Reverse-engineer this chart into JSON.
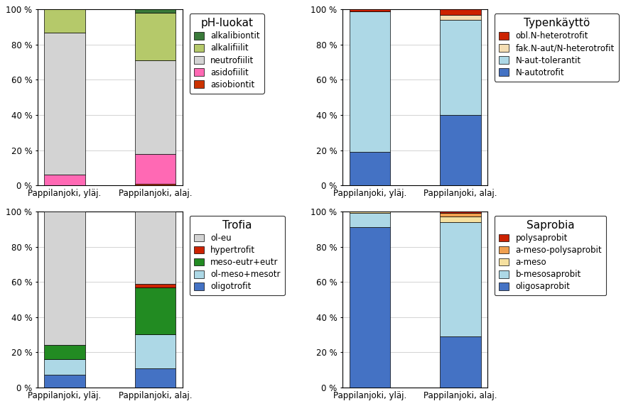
{
  "ph_luokat": {
    "title": "pH-luokat",
    "categories": [
      "Pappilanjoki, yläj.",
      "Pappilanjoki, alaj."
    ],
    "series_bottom_to_top": [
      {
        "label": "asiobiontit",
        "color": "#cc3300",
        "values": [
          0,
          1
        ]
      },
      {
        "label": "asidofiilit",
        "color": "#ff69b4",
        "values": [
          6,
          17
        ]
      },
      {
        "label": "neutrofiilit",
        "color": "#d3d3d3",
        "values": [
          81,
          53
        ]
      },
      {
        "label": "alkalifiilit",
        "color": "#b5c96a",
        "values": [
          13,
          27
        ]
      },
      {
        "label": "alkalibiontit",
        "color": "#3a7a3a",
        "values": [
          0,
          2
        ]
      }
    ],
    "legend_order": [
      "alkalibiontit",
      "alkalifiilit",
      "neutrofiilit",
      "asidofiilit",
      "asiobiontit"
    ]
  },
  "typenkaytto": {
    "title": "Typenkäyttö",
    "categories": [
      "Pappilanjoki, yläj.",
      "Pappilanjoki, alaj."
    ],
    "series_bottom_to_top": [
      {
        "label": "N-autotrofit",
        "color": "#4472c4",
        "values": [
          19,
          40
        ]
      },
      {
        "label": "N-aut-tolerantit",
        "color": "#add8e6",
        "values": [
          80,
          54
        ]
      },
      {
        "label": "fak.N-aut/N-heterotrofit",
        "color": "#f5deb3",
        "values": [
          0,
          3
        ]
      },
      {
        "label": "obl.N-heterotrofit",
        "color": "#cc2200",
        "values": [
          1,
          3
        ]
      }
    ],
    "legend_order": [
      "obl.N-heterotrofit",
      "fak.N-aut/N-heterotrofit",
      "N-aut-tolerantit",
      "N-autotrofit"
    ]
  },
  "trofia": {
    "title": "Trofia",
    "categories": [
      "Pappilanjoki, yläj.",
      "Pappilanjoki, alaj."
    ],
    "series_bottom_to_top": [
      {
        "label": "oligotrofit",
        "color": "#4472c4",
        "values": [
          7,
          11
        ]
      },
      {
        "label": "ol-meso+mesotr",
        "color": "#add8e6",
        "values": [
          9,
          19
        ]
      },
      {
        "label": "meso-eutr+eutr",
        "color": "#228b22",
        "values": [
          8,
          27
        ]
      },
      {
        "label": "hypertrofit",
        "color": "#cc2200",
        "values": [
          0,
          2
        ]
      },
      {
        "label": "ol-eu",
        "color": "#d3d3d3",
        "values": [
          76,
          41
        ]
      }
    ],
    "legend_order": [
      "ol-eu",
      "hypertrofit",
      "meso-eutr+eutr",
      "ol-meso+mesotr",
      "oligotrofit"
    ]
  },
  "saprobia": {
    "title": "Saprobia",
    "categories": [
      "Pappilanjoki, yläj.",
      "Pappilanjoki, alaj."
    ],
    "series_bottom_to_top": [
      {
        "label": "oligosaprobit",
        "color": "#4472c4",
        "values": [
          91,
          29
        ]
      },
      {
        "label": "b-mesosaprobit",
        "color": "#add8e6",
        "values": [
          8,
          65
        ]
      },
      {
        "label": "a-meso",
        "color": "#f5e0a0",
        "values": [
          1,
          3
        ]
      },
      {
        "label": "a-meso-polysaprobit",
        "color": "#f0a050",
        "values": [
          0,
          2
        ]
      },
      {
        "label": "polysaprobit",
        "color": "#cc2200",
        "values": [
          0,
          1
        ]
      }
    ],
    "legend_order": [
      "polysaprobit",
      "a-meso-polysaprobit",
      "a-meso",
      "b-mesosaprobit",
      "oligosaprobit"
    ]
  },
  "ytick_labels": [
    "0 %",
    "20 %",
    "40 %",
    "60 %",
    "80 %",
    "100 %"
  ],
  "bar_width": 0.45,
  "legend_fontsize": 8.5,
  "title_fontsize": 11,
  "tick_fontsize": 8.5,
  "xlabel_fontsize": 8.5
}
